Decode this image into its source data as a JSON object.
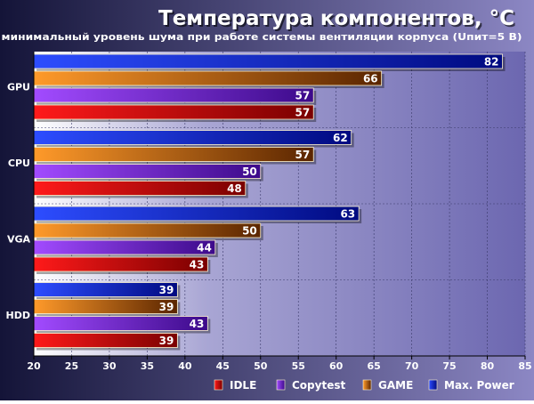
{
  "chart_data": {
    "type": "bar",
    "orientation": "horizontal",
    "title": "Температура компонентов, °C",
    "subtitle": "минимальный уровень шума при работе системы вентиляции корпуса (Uпит=5 В)",
    "categories": [
      "GPU",
      "CPU",
      "VGA",
      "HDD"
    ],
    "series": [
      {
        "name": "Max. Power",
        "values": [
          82,
          62,
          63,
          39
        ]
      },
      {
        "name": "GAME",
        "values": [
          66,
          57,
          50,
          39
        ]
      },
      {
        "name": "Copytest",
        "values": [
          57,
          50,
          44,
          43
        ]
      },
      {
        "name": "IDLE",
        "values": [
          57,
          48,
          43,
          39
        ]
      }
    ],
    "legend_order": [
      "IDLE",
      "Copytest",
      "GAME",
      "Max. Power"
    ],
    "xlim": [
      20,
      85
    ],
    "xticks": [
      20,
      25,
      30,
      35,
      40,
      45,
      50,
      55,
      60,
      65,
      70,
      75,
      80,
      85
    ],
    "grid": true,
    "legend_position": "bottom-right",
    "colors": {
      "IDLE": [
        "#ff1a1a",
        "#7a0000"
      ],
      "Copytest": [
        "#a24bff",
        "#3c0a8a"
      ],
      "GAME": [
        "#ff9a2a",
        "#5a2500"
      ],
      "Max. Power": [
        "#2d4dff",
        "#000a80"
      ],
      "background_left": "#141438",
      "background_right": "#8c87c4",
      "plot_left": "#ffffff",
      "plot_right": "#6c67b0"
    }
  }
}
